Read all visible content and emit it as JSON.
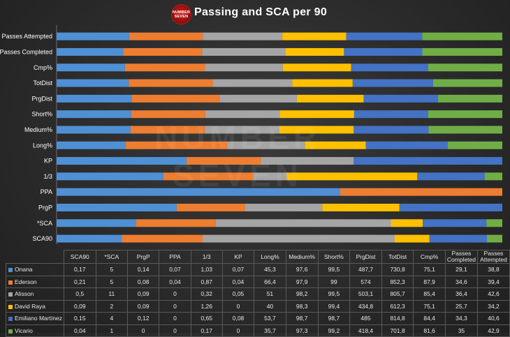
{
  "header": {
    "title": "Passing and SCA per 90",
    "logo_line1": "NUMBER",
    "logo_line2": "SEVEN"
  },
  "watermark": {
    "line1": "NUMBER",
    "line2": "SEVEN"
  },
  "chart_data": {
    "type": "bar",
    "orientation": "horizontal",
    "stacking": "100%",
    "title": "Passing and SCA per 90",
    "categories": [
      "Passes Attempted",
      "Passes Completed",
      "Cmp%",
      "TotDist",
      "PrgDist",
      "Short%",
      "Medium%",
      "Long%",
      "KP",
      "1/3",
      "PPA",
      "PrgP",
      "*SCA",
      "SCA90"
    ],
    "series": [
      {
        "name": "Onana",
        "color": "#4f90d5",
        "values": [
          38.8,
          29.1,
          75.1,
          730.8,
          487.7,
          99.5,
          97.6,
          45.3,
          0.07,
          1.03,
          0.07,
          0.14,
          5,
          0.17
        ]
      },
      {
        "name": "Ederson",
        "color": "#ed7d31",
        "values": [
          39.4,
          34.6,
          87.9,
          852.3,
          574,
          99,
          97.9,
          66.4,
          0.04,
          0.87,
          0.04,
          0.08,
          5,
          0.21
        ]
      },
      {
        "name": "Alisson",
        "color": "#a5a5a5",
        "values": [
          42.6,
          36.4,
          85.4,
          805.7,
          503.1,
          99.5,
          98.2,
          51,
          0.05,
          0.32,
          0,
          0.09,
          11,
          0.5
        ]
      },
      {
        "name": "David Raya",
        "color": "#ffc000",
        "values": [
          34.2,
          25.7,
          75.1,
          612.3,
          434.8,
          99.4,
          98.3,
          40,
          0,
          1.26,
          0,
          0.09,
          2,
          0.09
        ]
      },
      {
        "name": "Emiliano Martínez",
        "color": "#4472c4",
        "values": [
          40.6,
          34.3,
          84.4,
          814.8,
          485,
          98.7,
          98.7,
          53.7,
          0.08,
          0.65,
          0,
          0.12,
          4,
          0.15
        ]
      },
      {
        "name": "Vicario",
        "color": "#70ad47",
        "values": [
          42.9,
          35,
          81.6,
          701.8,
          418.4,
          99.2,
          97.3,
          35.7,
          0,
          0.17,
          0,
          0,
          1,
          0.04
        ]
      }
    ],
    "xlim": [
      0,
      1
    ],
    "gridlines": false,
    "legend": "table-below"
  },
  "table": {
    "headers": [
      "SCA90",
      "*SCA",
      "PrgP",
      "PPA",
      "1/3",
      "KP",
      "Long%",
      "Medium%",
      "Short%",
      "PrgDist",
      "TotDist",
      "Cmp%",
      "Passes Completed",
      "Passes Attempted"
    ],
    "rows": [
      {
        "name": "Onana",
        "color": "#4f90d5",
        "cells": [
          "0,17",
          "5",
          "0,14",
          "0,07",
          "1,03",
          "0,07",
          "45,3",
          "97,6",
          "99,5",
          "487,7",
          "730,8",
          "75,1",
          "29,1",
          "38,8"
        ]
      },
      {
        "name": "Ederson",
        "color": "#ed7d31",
        "cells": [
          "0,21",
          "5",
          "0,08",
          "0,04",
          "0,87",
          "0,04",
          "66,4",
          "97,9",
          "99",
          "574",
          "852,3",
          "87,9",
          "34,6",
          "39,4"
        ]
      },
      {
        "name": "Alisson",
        "color": "#a5a5a5",
        "cells": [
          "0,5",
          "11",
          "0,09",
          "0",
          "0,32",
          "0,05",
          "51",
          "98,2",
          "99,5",
          "503,1",
          "805,7",
          "85,4",
          "36,4",
          "42,6"
        ]
      },
      {
        "name": "David Raya",
        "color": "#ffc000",
        "cells": [
          "0,09",
          "2",
          "0,09",
          "0",
          "1,26",
          "0",
          "40",
          "98,3",
          "99,4",
          "434,8",
          "612,3",
          "75,1",
          "25,7",
          "34,2"
        ]
      },
      {
        "name": "Emiliano Martínez",
        "color": "#4472c4",
        "cells": [
          "0,15",
          "4",
          "0,12",
          "0",
          "0,65",
          "0,08",
          "53,7",
          "98,7",
          "98,7",
          "485",
          "814,8",
          "84,4",
          "34,3",
          "40,6"
        ]
      },
      {
        "name": "Vicario",
        "color": "#70ad47",
        "cells": [
          "0,04",
          "1",
          "0",
          "0",
          "0,17",
          "0",
          "35,7",
          "97,3",
          "99,2",
          "418,4",
          "701,8",
          "81,6",
          "35",
          "42,9"
        ]
      }
    ]
  }
}
